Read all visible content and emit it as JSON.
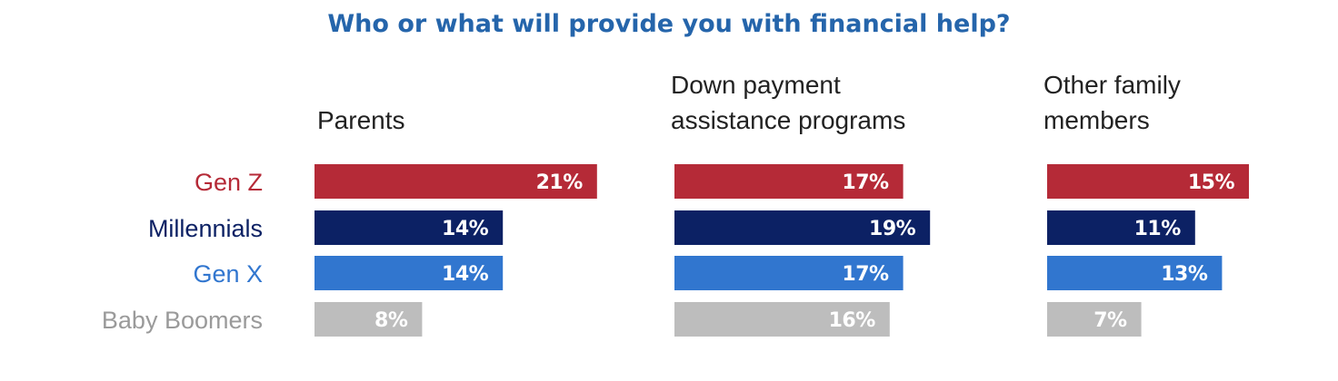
{
  "chart_data": {
    "type": "bar",
    "orientation": "horizontal",
    "title": "Who or what will provide you with financial help?",
    "categories": [
      "Gen Z",
      "Millennials",
      "Gen X",
      "Baby Boomers"
    ],
    "category_colors": [
      "#b52a37",
      "#0c2164",
      "#3176cf",
      "#bdbdbd"
    ],
    "category_label_colors": [
      "#b52a37",
      "#0c2164",
      "#3176cf",
      "#9a9a9a"
    ],
    "value_suffix": "%",
    "panels": [
      {
        "title_lines": [
          "Parents"
        ],
        "values": [
          21,
          14,
          14,
          8
        ]
      },
      {
        "title_lines": [
          "Down payment",
          "assistance programs"
        ],
        "values": [
          17,
          19,
          17,
          16
        ]
      },
      {
        "title_lines": [
          "Other family",
          "members"
        ],
        "values": [
          15,
          11,
          13,
          7
        ]
      }
    ]
  }
}
